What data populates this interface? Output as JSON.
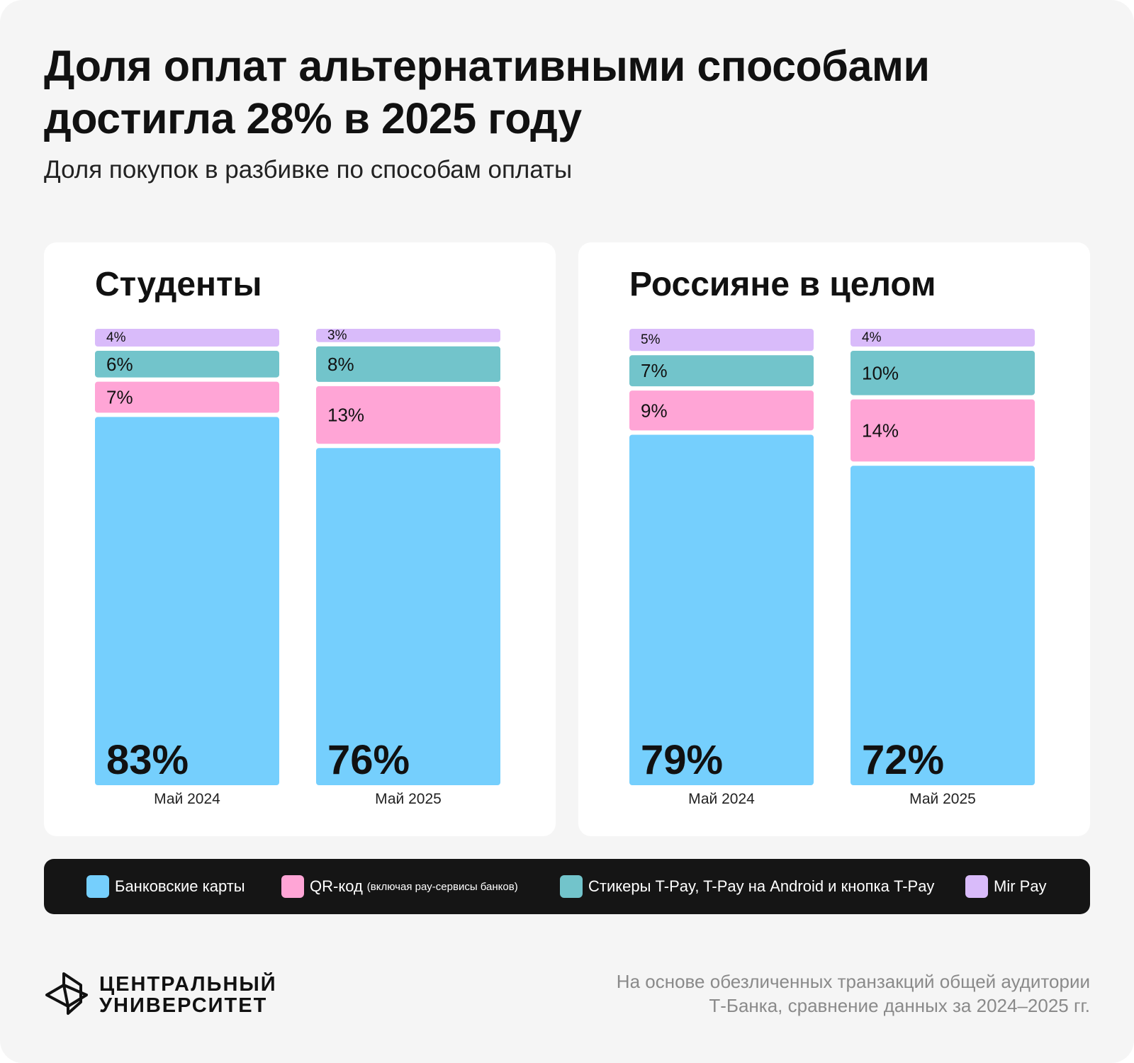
{
  "title_line1": "Доля оплат альтернативными способами",
  "title_line2": "достигла 28% в 2025 году",
  "subtitle": "Доля покупок в разбивке по способам оплаты",
  "colors": {
    "bank_cards": "#75cffd",
    "qr": "#ffa5d6",
    "stickers": "#72c4cb",
    "mir_pay": "#d9bbfa"
  },
  "chart_data": [
    {
      "type": "bar",
      "stacked": true,
      "title": "Студенты",
      "categories": [
        "Май 2024",
        "Май 2025"
      ],
      "series": [
        {
          "name": "Банковские карты",
          "values": [
            83,
            76
          ],
          "labels": [
            "83%",
            "76%"
          ]
        },
        {
          "name": "QR-код (включая pay-сервисы банков)",
          "values": [
            7,
            13
          ],
          "labels": [
            "7%",
            "13%"
          ]
        },
        {
          "name": "Стикеры T-Pay, T-Pay на Android и кнопка T-Pay",
          "values": [
            6,
            8
          ],
          "labels": [
            "6%",
            "8%"
          ]
        },
        {
          "name": "Mir Pay",
          "values": [
            4,
            3
          ],
          "labels": [
            "4%",
            "3%"
          ]
        }
      ]
    },
    {
      "type": "bar",
      "stacked": true,
      "title": "Россияне в целом",
      "categories": [
        "Май 2024",
        "Май 2025"
      ],
      "series": [
        {
          "name": "Банковские карты",
          "values": [
            79,
            72
          ],
          "labels": [
            "79%",
            "72%"
          ]
        },
        {
          "name": "QR-код (включая pay-сервисы банков)",
          "values": [
            9,
            14
          ],
          "labels": [
            "9%",
            "14%"
          ]
        },
        {
          "name": "Стикеры T-Pay, T-Pay на Android и кнопка T-Pay",
          "values": [
            7,
            10
          ],
          "labels": [
            "7%",
            "10%"
          ]
        },
        {
          "name": "Mir Pay",
          "values": [
            5,
            4
          ],
          "labels": [
            "5%",
            "4%"
          ]
        }
      ]
    }
  ],
  "legend": [
    {
      "label": "Банковские карты",
      "note": ""
    },
    {
      "label": "QR-код",
      "note": "(включая pay-сервисы банков)"
    },
    {
      "label": "Стикеры T-Pay, T-Pay на Android и кнопка T-Pay",
      "note": ""
    },
    {
      "label": "Mir Pay",
      "note": ""
    }
  ],
  "logo_line1": "ЦЕНТРАЛЬНЫЙ",
  "logo_line2": "УНИВЕРСИТЕТ",
  "footnote_line1": "На основе обезличенных транзакций общей аудитории",
  "footnote_line2": "Т-Банка, сравнение данных за 2024–2025 гг."
}
